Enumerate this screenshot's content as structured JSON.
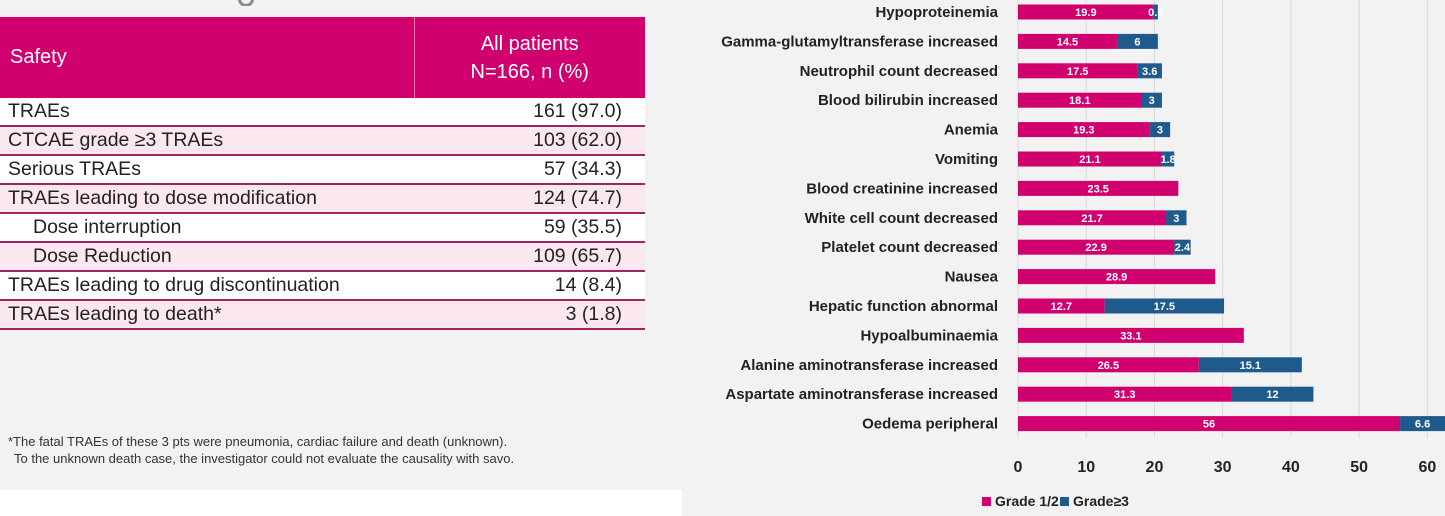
{
  "table": {
    "header": {
      "col1": "Safety",
      "col2_line1": "All patients",
      "col2_line2": "N=166, n (%)"
    },
    "rows": [
      {
        "label": "TRAEs",
        "value": "161 (97.0)"
      },
      {
        "label": "CTCAE grade ≥3 TRAEs",
        "value": "103 (62.0)"
      },
      {
        "label": "Serious TRAEs",
        "value": "57 (34.3)"
      },
      {
        "label": "TRAEs leading to dose modification",
        "value": "124 (74.7)"
      },
      {
        "label": "Dose interruption",
        "value": "59 (35.5)"
      },
      {
        "label": "Dose Reduction",
        "value": "109 (65.7)"
      },
      {
        "label": "TRAEs leading to drug discontinuation",
        "value": "14 (8.4)"
      },
      {
        "label": "TRAEs leading to death*",
        "value": "3 (1.8)"
      }
    ],
    "footnote_line1": "*The fatal TRAEs of these 3 pts were pneumonia, cardiac failure and death (unknown).",
    "footnote_line2": "To the unknown death case, the investigator could not evaluate the causality with savo."
  },
  "chart_data": {
    "type": "bar",
    "orientation": "horizontal",
    "stacked": true,
    "categories": [
      "Hypoproteinemia",
      "Gamma-glutamyltransferase increased",
      "Neutrophil count decreased",
      "Blood bilirubin increased",
      "Anemia",
      "Vomiting",
      "Blood creatinine increased",
      "White cell count decreased",
      "Platelet count decreased",
      "Nausea",
      "Hepatic function abnormal",
      "Hypoalbuminaemia",
      "Alanine aminotransferase increased",
      "Aspartate aminotransferase increased",
      "Oedema peripheral"
    ],
    "series": [
      {
        "name": "Grade 1/2",
        "color": "#d0006f",
        "values": [
          19.9,
          14.5,
          17.5,
          18.1,
          19.3,
          21.1,
          23.5,
          21.7,
          22.9,
          28.9,
          12.7,
          33.1,
          26.5,
          31.3,
          56
        ]
      },
      {
        "name": "Grade≥3",
        "color": "#1f5a8c",
        "values": [
          0.6,
          6,
          3.6,
          3,
          3,
          1.8,
          null,
          3,
          2.4,
          null,
          17.5,
          null,
          15.1,
          12,
          6.6
        ]
      }
    ],
    "xlim": [
      0,
      62
    ],
    "xticks": [
      0,
      10,
      20,
      30,
      40,
      50,
      60
    ],
    "grid": true,
    "legend": "bottom"
  }
}
